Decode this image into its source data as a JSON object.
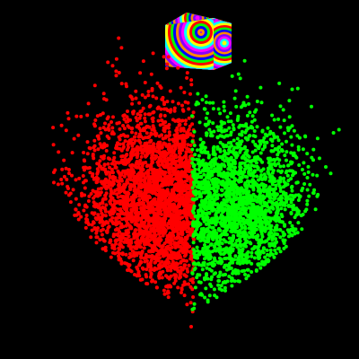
{
  "scene": {
    "background": "#000000",
    "clusters": [
      {
        "id": "left",
        "shape": "heart-left-half",
        "color": "#ff0000"
      },
      {
        "id": "right",
        "shape": "heart-right-half",
        "color": "#00ff00"
      }
    ],
    "cube": {
      "pattern": "psychedelic-concentric-rings",
      "colors": [
        "#ff00ff",
        "#00ffff",
        "#ffff00",
        "#ff0000",
        "#00ff00",
        "#0000ff",
        "#ff8800",
        "#8800ff"
      ]
    }
  }
}
